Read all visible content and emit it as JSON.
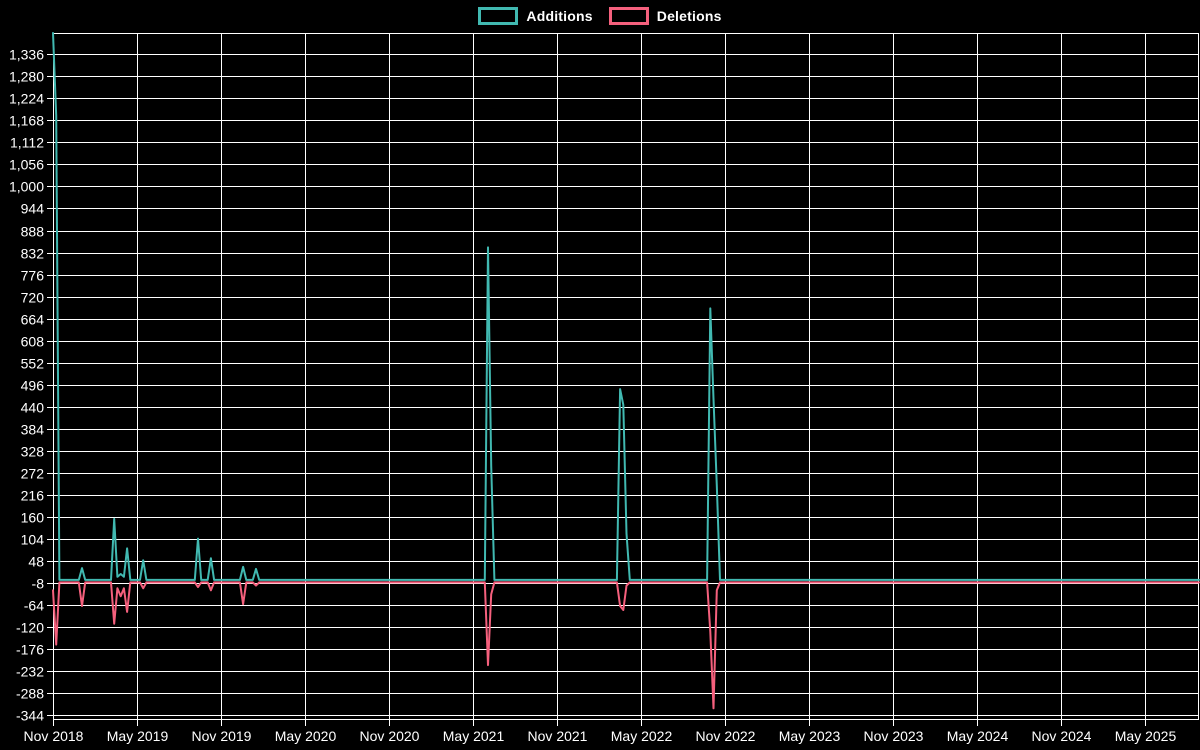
{
  "page": {
    "background": "#000000"
  },
  "legend": {
    "items": [
      {
        "label": "Additions",
        "color": "#41B9B1"
      },
      {
        "label": "Deletions",
        "color": "#F5607D"
      }
    ]
  },
  "chart_data": {
    "type": "line",
    "title": "",
    "xlabel": "",
    "ylabel": "",
    "grid": true,
    "background_color": "#000000",
    "gridline_color": "#FFFFFF",
    "text_color": "#FFFFFF",
    "legend_position": "top-center",
    "ylim": [
      -356,
      1390
    ],
    "y_tick_values": [
      1336,
      1280,
      1224,
      1168,
      1112,
      1056,
      1000,
      944,
      888,
      832,
      776,
      720,
      664,
      608,
      552,
      496,
      440,
      384,
      328,
      272,
      216,
      160,
      104,
      48,
      -8,
      -64,
      -120,
      -176,
      -232,
      -288,
      -344
    ],
    "y_tick_labels": [
      "1,336",
      "1,280",
      "1,224",
      "1,168",
      "1,112",
      "1,056",
      "1,000",
      "944",
      "888",
      "832",
      "776",
      "720",
      "664",
      "608",
      "552",
      "496",
      "440",
      "384",
      "328",
      "272",
      "216",
      "160",
      "104",
      "48",
      "-8",
      "-64",
      "-120",
      "-176",
      "-232",
      "-288",
      "-344"
    ],
    "x_tick_labels": [
      "Nov 2018",
      "May 2019",
      "Nov 2019",
      "May 2020",
      "Nov 2020",
      "May 2021",
      "Nov 2021",
      "May 2022",
      "Nov 2022",
      "May 2023",
      "Nov 2023",
      "May 2024",
      "Nov 2024",
      "May 2025"
    ],
    "x_unit": "weeks since first tick (Nov 2018), 26.07 weeks per 6-month tick",
    "series": [
      {
        "name": "Additions",
        "color": "#41B9B1",
        "points": [
          [
            0,
            1390
          ],
          [
            1,
            1180
          ],
          [
            2,
            0
          ],
          [
            8,
            0
          ],
          [
            9,
            30
          ],
          [
            10,
            0
          ],
          [
            18,
            0
          ],
          [
            19,
            155
          ],
          [
            20,
            8
          ],
          [
            21,
            15
          ],
          [
            22,
            8
          ],
          [
            23,
            80
          ],
          [
            24,
            0
          ],
          [
            27,
            0
          ],
          [
            28,
            50
          ],
          [
            29,
            0
          ],
          [
            44,
            0
          ],
          [
            45,
            105
          ],
          [
            46,
            0
          ],
          [
            48,
            0
          ],
          [
            49,
            55
          ],
          [
            50,
            0
          ],
          [
            58,
            0
          ],
          [
            59,
            33
          ],
          [
            60,
            0
          ],
          [
            62,
            0
          ],
          [
            63,
            28
          ],
          [
            64,
            0
          ],
          [
            134,
            0
          ],
          [
            135,
            845
          ],
          [
            136,
            290
          ],
          [
            137,
            0
          ],
          [
            175,
            0
          ],
          [
            176,
            485
          ],
          [
            177,
            445
          ],
          [
            178,
            118
          ],
          [
            179,
            0
          ],
          [
            203,
            0
          ],
          [
            204,
            690
          ],
          [
            205,
            460
          ],
          [
            206,
            240
          ],
          [
            207,
            0
          ],
          [
            356,
            0
          ]
        ]
      },
      {
        "name": "Deletions",
        "color": "#F5607D",
        "points": [
          [
            0,
            -20
          ],
          [
            1,
            -158
          ],
          [
            2,
            0
          ],
          [
            8,
            0
          ],
          [
            9,
            -60
          ],
          [
            10,
            0
          ],
          [
            18,
            0
          ],
          [
            19,
            -105
          ],
          [
            20,
            -15
          ],
          [
            21,
            -35
          ],
          [
            22,
            -15
          ],
          [
            23,
            -75
          ],
          [
            24,
            0
          ],
          [
            27,
            0
          ],
          [
            28,
            -15
          ],
          [
            29,
            0
          ],
          [
            44,
            0
          ],
          [
            45,
            -12
          ],
          [
            46,
            0
          ],
          [
            48,
            0
          ],
          [
            49,
            -20
          ],
          [
            50,
            0
          ],
          [
            58,
            0
          ],
          [
            59,
            -55
          ],
          [
            60,
            0
          ],
          [
            62,
            0
          ],
          [
            63,
            -8
          ],
          [
            64,
            0
          ],
          [
            134,
            0
          ],
          [
            135,
            -210
          ],
          [
            136,
            -30
          ],
          [
            137,
            0
          ],
          [
            175,
            0
          ],
          [
            176,
            -60
          ],
          [
            177,
            -70
          ],
          [
            178,
            -8
          ],
          [
            179,
            0
          ],
          [
            203,
            0
          ],
          [
            204,
            -125
          ],
          [
            205,
            -320
          ],
          [
            206,
            -20
          ],
          [
            207,
            0
          ],
          [
            356,
            0
          ]
        ]
      }
    ]
  }
}
